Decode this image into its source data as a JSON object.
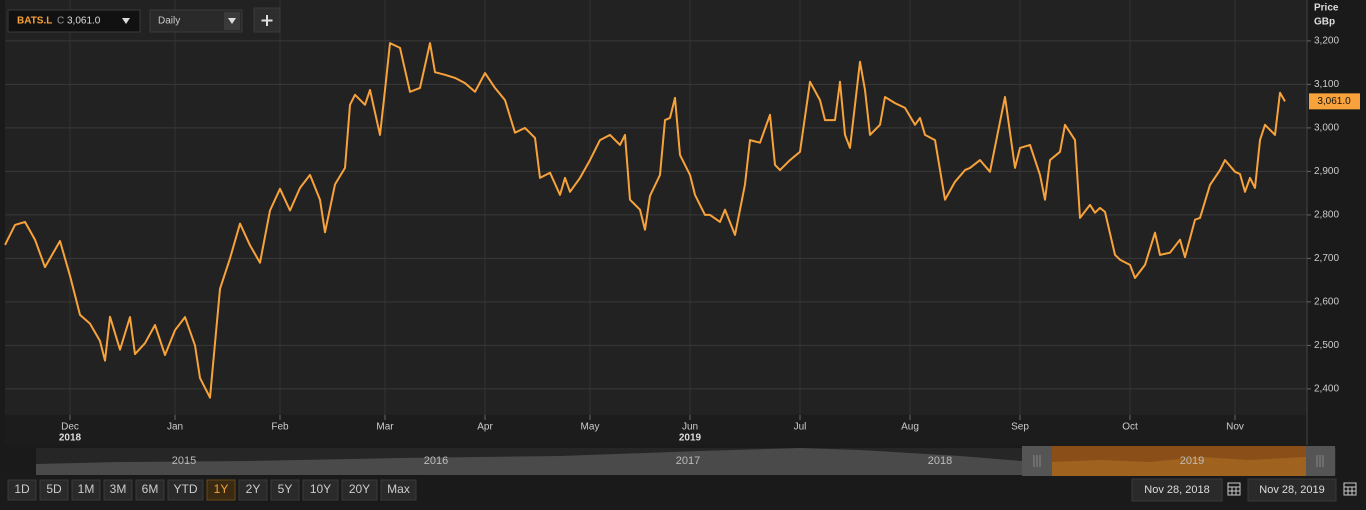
{
  "chart_data": {
    "type": "line",
    "y_axis_title": "Price",
    "y_axis_unit": "GBp",
    "close_prefix": "C",
    "interval": "Daily",
    "x": [
      0,
      2,
      4,
      6,
      8,
      10,
      11,
      13,
      15,
      17,
      19,
      20,
      21,
      23,
      25,
      26,
      28,
      30,
      32,
      34,
      36,
      38,
      39,
      41,
      43,
      45,
      47,
      49,
      51,
      52,
      53,
      55,
      57,
      59,
      61,
      63,
      64,
      66,
      68,
      69,
      70,
      72,
      73,
      75,
      76,
      77,
      79,
      81,
      83,
      85,
      86,
      88,
      90,
      92,
      94,
      96,
      98,
      100,
      102,
      104,
      106,
      107,
      109,
      111,
      112,
      113,
      115,
      117,
      119,
      121,
      123,
      124,
      125,
      127,
      128,
      129,
      131,
      132,
      133,
      134,
      135,
      137,
      138,
      140,
      141,
      143,
      144,
      146,
      148,
      149,
      151,
      153,
      154,
      155,
      157,
      159,
      161,
      163,
      164,
      166,
      167,
      168,
      169,
      171,
      172,
      173,
      175,
      176,
      178,
      180,
      182,
      183,
      184,
      186,
      188,
      190,
      192,
      193,
      195,
      197,
      199,
      200,
      202,
      203,
      205,
      207,
      208,
      209,
      211,
      212,
      214,
      215,
      217,
      218,
      219,
      220,
      222,
      223,
      225,
      226,
      228,
      230,
      231,
      233,
      235,
      236,
      238,
      239,
      241,
      243,
      244,
      246,
      247,
      248,
      249,
      250,
      251,
      252,
      254,
      255,
      256
    ],
    "series": [
      {
        "name": "BATS.L",
        "color": "#f7a23b",
        "values": [
          2731,
          2777,
          2784,
          2743,
          2680,
          2720,
          2740,
          2660,
          2570,
          2550,
          2510,
          2465,
          2566,
          2490,
          2565,
          2480,
          2505,
          2547,
          2478,
          2535,
          2565,
          2500,
          2425,
          2380,
          2630,
          2700,
          2780,
          2730,
          2690,
          2750,
          2810,
          2860,
          2810,
          2862,
          2892,
          2835,
          2760,
          2870,
          2908,
          3053,
          3076,
          3053,
          3087,
          2984,
          3087,
          3195,
          3184,
          3083,
          3092,
          3195,
          3128,
          3122,
          3115,
          3103,
          3083,
          3126,
          3092,
          3064,
          2989,
          3000,
          2977,
          2885,
          2897,
          2846,
          2885,
          2853,
          2885,
          2926,
          2972,
          2984,
          2961,
          2984,
          2835,
          2812,
          2766,
          2844,
          2892,
          3018,
          3023,
          3069,
          2938,
          2892,
          2846,
          2800,
          2800,
          2784,
          2812,
          2754,
          2870,
          2972,
          2966,
          3030,
          2915,
          2903,
          2926,
          2945,
          3106,
          3064,
          3018,
          3018,
          3106,
          2984,
          2954,
          3152,
          3087,
          2984,
          3007,
          3071,
          3057,
          3046,
          3007,
          3023,
          2984,
          2972,
          2835,
          2876,
          2903,
          2908,
          2926,
          2899,
          3014,
          3071,
          2908,
          2954,
          2961,
          2892,
          2835,
          2926,
          2945,
          3007,
          2972,
          2793,
          2823,
          2805,
          2816,
          2807,
          2708,
          2697,
          2685,
          2655,
          2685,
          2759,
          2708,
          2713,
          2743,
          2703,
          2789,
          2793,
          2869,
          2903,
          2926,
          2899,
          2894,
          2853,
          2885,
          2862,
          2972,
          3007,
          2984,
          3081,
          3061
        ]
      }
    ],
    "last_value_label": "3,061.0",
    "xlim": [
      0,
      260
    ],
    "ylim": [
      2340,
      3294
    ],
    "xticks": [
      {
        "value": 13,
        "label": "Dec"
      },
      {
        "value": 34,
        "label": "Jan"
      },
      {
        "value": 55,
        "label": "Feb"
      },
      {
        "value": 76,
        "label": "Mar"
      },
      {
        "value": 96,
        "label": "Apr"
      },
      {
        "value": 117,
        "label": "May"
      },
      {
        "value": 137,
        "label": "Jun"
      },
      {
        "value": 159,
        "label": "Jul"
      },
      {
        "value": 181,
        "label": "Aug"
      },
      {
        "value": 203,
        "label": "Sep"
      },
      {
        "value": 225,
        "label": "Oct"
      },
      {
        "value": 246,
        "label": "Nov"
      }
    ],
    "x_year_ticks": [
      {
        "value": 13,
        "label": "2018"
      },
      {
        "value": 137,
        "label": "2019"
      }
    ],
    "yticks": [
      {
        "value": 2400,
        "label": "2,400"
      },
      {
        "value": 2500,
        "label": "2,500"
      },
      {
        "value": 2600,
        "label": "2,600"
      },
      {
        "value": 2700,
        "label": "2,700"
      },
      {
        "value": 2800,
        "label": "2,800"
      },
      {
        "value": 2900,
        "label": "2,900"
      },
      {
        "value": 3000,
        "label": "3,000"
      },
      {
        "value": 3100,
        "label": "3,100"
      },
      {
        "value": 3200,
        "label": "3,200"
      }
    ],
    "grid": true
  },
  "navigator": {
    "years": [
      "2015",
      "2016",
      "2017",
      "2018",
      "2019"
    ]
  },
  "range_buttons": {
    "items": [
      "1D",
      "5D",
      "1M",
      "3M",
      "6M",
      "YTD",
      "1Y",
      "2Y",
      "5Y",
      "10Y",
      "20Y",
      "Max"
    ],
    "active": 6
  },
  "date_range": {
    "from": "Nov 28, 2018",
    "to": "Nov 28, 2019"
  }
}
